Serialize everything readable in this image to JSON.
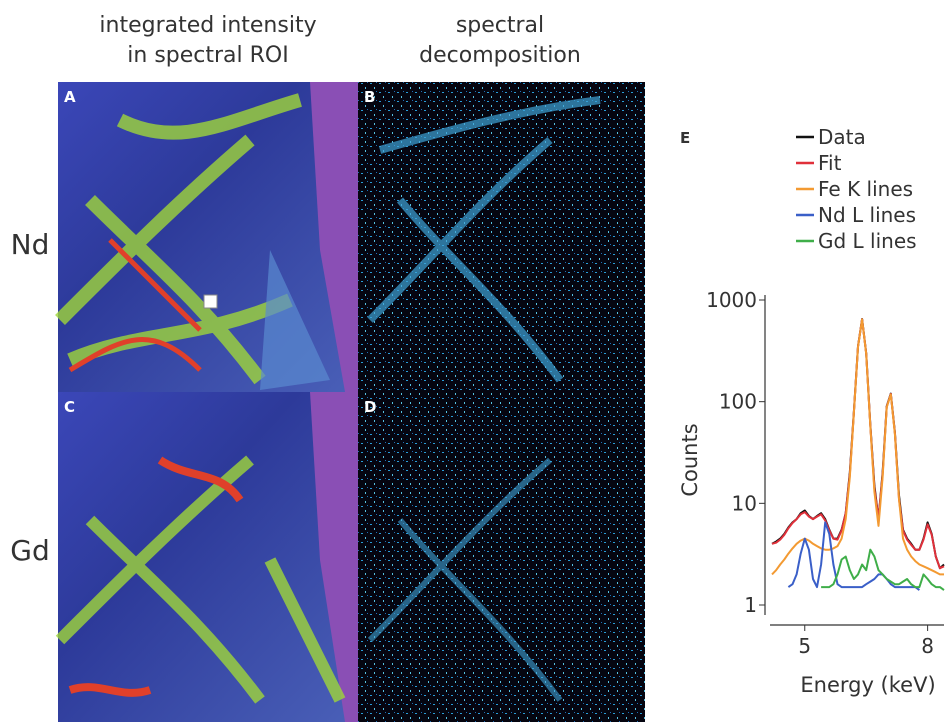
{
  "column_titles": [
    [
      "integrated intensity",
      "in spectral ROI"
    ],
    [
      "spectral",
      "decomposition"
    ]
  ],
  "row_labels": [
    "Nd",
    "Gd"
  ],
  "panel_labels": [
    "A",
    "B",
    "C",
    "D",
    "E"
  ],
  "chart_data": {
    "type": "line",
    "xlabel": "Energy (keV)",
    "ylabel": "Counts",
    "log_y": true,
    "x": [
      4.2,
      4.3,
      4.4,
      4.5,
      4.6,
      4.7,
      4.8,
      4.9,
      5.0,
      5.1,
      5.2,
      5.3,
      5.4,
      5.5,
      5.6,
      5.7,
      5.8,
      5.9,
      6.0,
      6.1,
      6.2,
      6.3,
      6.4,
      6.5,
      6.6,
      6.7,
      6.8,
      6.9,
      7.0,
      7.1,
      7.2,
      7.3,
      7.4,
      7.5,
      7.6,
      7.7,
      7.8,
      7.9,
      8.0,
      8.1,
      8.2,
      8.3,
      8.4
    ],
    "series": [
      {
        "name": "Data",
        "color": "#111111",
        "values": [
          4,
          4.2,
          4.5,
          5,
          5.8,
          6.5,
          7,
          8,
          8.5,
          7.5,
          7,
          7.5,
          8,
          7,
          5.5,
          4.5,
          4.5,
          5.5,
          8,
          20,
          80,
          350,
          650,
          300,
          60,
          15,
          7,
          20,
          90,
          120,
          50,
          12,
          5.5,
          4.5,
          4,
          3.5,
          3.5,
          4.5,
          6.5,
          5,
          3,
          2.3,
          2.5
        ]
      },
      {
        "name": "Fit",
        "color": "#e0303a",
        "values": [
          4,
          4.1,
          4.4,
          4.9,
          5.7,
          6.4,
          7,
          7.8,
          8.2,
          7.4,
          7,
          7.4,
          7.8,
          6.8,
          5.4,
          4.5,
          4.4,
          5.4,
          8,
          19,
          79,
          348,
          648,
          298,
          59,
          14,
          7,
          19,
          89,
          119,
          49,
          11,
          5.4,
          4.4,
          3.9,
          3.5,
          3.5,
          4.4,
          6.2,
          4.9,
          3,
          2.3,
          2.4
        ]
      },
      {
        "name": "Fe K lines",
        "color": "#f39a32",
        "values": [
          2,
          2.2,
          2.5,
          2.8,
          3.2,
          3.6,
          4,
          4.3,
          4.5,
          4.3,
          4,
          3.8,
          3.6,
          3.5,
          3.5,
          3.6,
          3.8,
          4.5,
          7,
          18,
          78,
          345,
          645,
          295,
          58,
          13,
          6,
          18,
          88,
          118,
          48,
          11,
          4.5,
          3.5,
          3,
          2.7,
          2.5,
          2.4,
          2.3,
          2.2,
          2.1,
          2,
          2
        ]
      },
      {
        "name": "Nd L lines",
        "color": "#3a5fc8",
        "values": [
          null,
          null,
          null,
          null,
          1.5,
          1.6,
          2,
          3.2,
          4.5,
          3.5,
          1.8,
          1.5,
          2.5,
          6.5,
          5,
          2.5,
          1.6,
          1.5,
          1.5,
          1.5,
          1.5,
          1.5,
          1.5,
          1.6,
          1.7,
          1.8,
          2,
          2,
          1.8,
          1.6,
          1.5,
          1.5,
          1.5,
          1.5,
          1.5,
          1.5,
          1.4,
          null,
          null,
          null,
          null,
          null,
          null
        ]
      },
      {
        "name": "Gd L lines",
        "color": "#3fae49",
        "values": [
          null,
          null,
          null,
          null,
          null,
          null,
          null,
          null,
          null,
          null,
          null,
          null,
          1.5,
          1.5,
          1.5,
          1.6,
          2,
          2.8,
          3,
          2.2,
          1.8,
          2,
          2.5,
          2.2,
          3.5,
          3,
          2.2,
          2,
          1.8,
          1.7,
          1.6,
          1.6,
          1.7,
          1.8,
          1.6,
          1.5,
          1.5,
          2,
          1.8,
          1.6,
          1.5,
          1.5,
          1.4
        ]
      }
    ],
    "xlim": [
      4.2,
      8.4
    ],
    "xticks": [
      5,
      8
    ],
    "ylim": [
      1,
      1000
    ],
    "yticks": [
      1,
      10,
      100,
      1000
    ]
  }
}
